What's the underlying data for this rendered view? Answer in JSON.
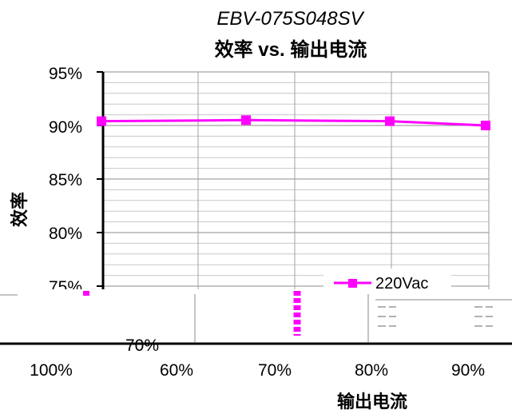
{
  "chart_data": {
    "type": "line",
    "subtitle": "EBV-075S048SV",
    "title": "效率 vs. 输出电流",
    "xlabel": "输出电流",
    "ylabel": "效率",
    "y_ticks": [
      "95%",
      "90%",
      "85%",
      "80%",
      "75%",
      "70%"
    ],
    "x_ticks": [
      "100%",
      "60%",
      "70%",
      "80%",
      "90%"
    ],
    "ylim": [
      70,
      95
    ],
    "grid": true,
    "legend_position": "inside-lower-right",
    "series": [
      {
        "name": "220Vac",
        "color": "#ff00ff",
        "values": [
          90.4,
          90.5,
          90.4,
          90.0
        ]
      }
    ]
  }
}
